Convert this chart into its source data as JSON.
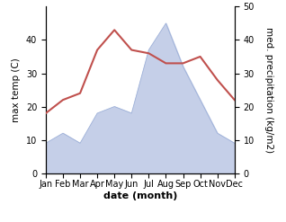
{
  "months": [
    "Jan",
    "Feb",
    "Mar",
    "Apr",
    "May",
    "Jun",
    "Jul",
    "Aug",
    "Sep",
    "Oct",
    "Nov",
    "Dec"
  ],
  "temp": [
    18,
    22,
    24,
    37,
    43,
    37,
    36,
    33,
    33,
    35,
    28,
    22
  ],
  "precip": [
    9,
    12,
    9,
    18,
    20,
    18,
    37,
    45,
    32,
    22,
    12,
    9
  ],
  "temp_color": "#c0504d",
  "precip_fill_color": "#c5cfe8",
  "precip_edge_color": "#9db0d8",
  "ylabel_left": "max temp (C)",
  "ylabel_right": "med. precipitation (kg/m2)",
  "xlabel": "date (month)",
  "ylim_left": [
    0,
    50
  ],
  "ylim_right": [
    0,
    50
  ],
  "yticks_left": [
    0,
    10,
    20,
    30,
    40
  ],
  "yticks_right": [
    0,
    10,
    20,
    30,
    40,
    50
  ],
  "label_fontsize": 7.5,
  "tick_fontsize": 7,
  "xlabel_fontsize": 8
}
